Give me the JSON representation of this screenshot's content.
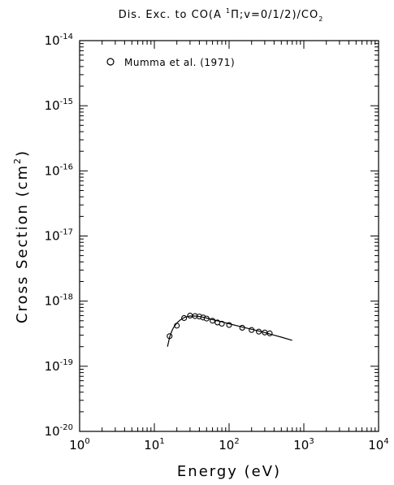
{
  "chart_data": {
    "type": "scatter",
    "title_parts": {
      "pre": "Dis. Exc. to CO(A ",
      "sup": "1",
      "pi": "Π",
      "mid": ";v=0/1/2)/CO",
      "sub": "2"
    },
    "xlabel": "Energy (eV)",
    "ylabel_main": "Cross Section (cm",
    "ylabel_sup": "2",
    "ylabel_close": ")",
    "x_scale": "log",
    "y_scale": "log",
    "xlim": [
      1,
      10000
    ],
    "ylim": [
      1e-20,
      1e-14
    ],
    "x_ticks": [
      {
        "base": "10",
        "exp": "0",
        "value": 1
      },
      {
        "base": "10",
        "exp": "1",
        "value": 10
      },
      {
        "base": "10",
        "exp": "2",
        "value": 100
      },
      {
        "base": "10",
        "exp": "3",
        "value": 1000
      },
      {
        "base": "10",
        "exp": "4",
        "value": 10000
      }
    ],
    "y_ticks": [
      {
        "base": "10",
        "exp": "-20",
        "value": 1e-20
      },
      {
        "base": "10",
        "exp": "-19",
        "value": 1e-19
      },
      {
        "base": "10",
        "exp": "-18",
        "value": 1e-18
      },
      {
        "base": "10",
        "exp": "-17",
        "value": 1e-17
      },
      {
        "base": "10",
        "exp": "-16",
        "value": 1e-16
      },
      {
        "base": "10",
        "exp": "-15",
        "value": 1e-15
      },
      {
        "base": "10",
        "exp": "-14",
        "value": 1e-14
      }
    ],
    "legend": {
      "label": "Mumma et al. (1971)",
      "marker": "circle",
      "position": "top-left"
    },
    "grid": false,
    "series": [
      {
        "name": "Mumma et al. (1971)",
        "kind": "points",
        "marker": "circle",
        "x": [
          16,
          20,
          25,
          30,
          35,
          40,
          45,
          50,
          60,
          70,
          80,
          100,
          150,
          200,
          250,
          300,
          350
        ],
        "y": [
          2.9e-19,
          4.2e-19,
          5.5e-19,
          6e-19,
          5.9e-19,
          5.8e-19,
          5.6e-19,
          5.4e-19,
          5e-19,
          4.7e-19,
          4.5e-19,
          4.3e-19,
          3.9e-19,
          3.6e-19,
          3.4e-19,
          3.3e-19,
          3.2e-19
        ]
      },
      {
        "kind": "line",
        "x": [
          15,
          16,
          17,
          18,
          20,
          22,
          25,
          28,
          30,
          35,
          40,
          50,
          60,
          80,
          100,
          150,
          200,
          300,
          400,
          500,
          700
        ],
        "y": [
          2e-19,
          2.8e-19,
          3.4e-19,
          3.9e-19,
          4.6e-19,
          5.1e-19,
          5.6e-19,
          5.8e-19,
          5.9e-19,
          5.9e-19,
          5.8e-19,
          5.5e-19,
          5.2e-19,
          4.8e-19,
          4.5e-19,
          4e-19,
          3.7e-19,
          3.3e-19,
          3e-19,
          2.8e-19,
          2.5e-19
        ]
      }
    ]
  }
}
